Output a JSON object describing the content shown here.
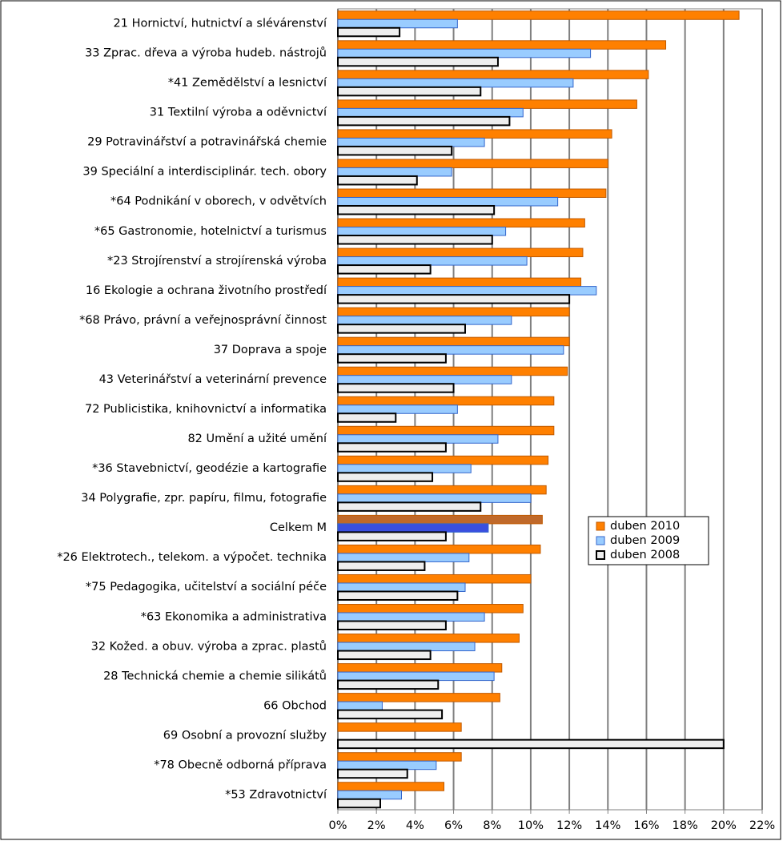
{
  "chart_data": {
    "type": "bar",
    "orientation": "horizontal",
    "categories": [
      "21 Hornictví, hutnictví a slévárenství",
      "33 Zprac. dřeva a výroba hudeb. nástrojů",
      "*41 Zemědělství a lesnictví",
      "31 Textilní výroba a oděvnictví",
      "29 Potravinářství a potravinářská chemie",
      "39 Speciální a interdisciplinár. tech. obory",
      "*64 Podnikání v oborech, v odvětvích",
      "*65 Gastronomie, hotelnictví a turismus",
      "*23 Strojírenství a strojírenská výroba",
      "16 Ekologie a ochrana životního prostředí",
      "*68 Právo, právní a veřejnosprávní činnost",
      "37 Doprava a spoje",
      "43 Veterinářství a veterinární prevence",
      "72 Publicistika, knihovnictví a informatika",
      "82 Umění a užité umění",
      "*36 Stavebnictví, geodézie a kartografie",
      "34 Polygrafie, zpr. papíru, filmu, fotografie",
      "Celkem M",
      "*26 Elektrotech., telekom. a výpočet. technika",
      "*75 Pedagogika, učitelství a sociální péče",
      "*63 Ekonomika a administrativa",
      "32 Kožed. a obuv. výroba a zprac. plastů",
      "28 Technická chemie a chemie silikátů",
      "66 Obchod",
      "69 Osobní a provozní služby",
      "*78 Obecně odborná příprava",
      "*53 Zdravotnictví"
    ],
    "series": [
      {
        "name": "duben 2010",
        "color": "#ff8000",
        "stroke": "#c05a00",
        "highlight_color": "#c0692a",
        "values": [
          20.8,
          17.0,
          16.1,
          15.5,
          14.2,
          14.0,
          13.9,
          12.8,
          12.7,
          12.6,
          12.0,
          12.0,
          11.9,
          11.2,
          11.2,
          10.9,
          10.8,
          10.6,
          10.5,
          10.0,
          9.6,
          9.4,
          8.5,
          8.4,
          6.4,
          6.4,
          5.5
        ]
      },
      {
        "name": "duben 2009",
        "color": "#99ccff",
        "stroke": "#3366cc",
        "highlight_color": "#3a4fe0",
        "values": [
          6.2,
          13.1,
          12.2,
          9.6,
          7.6,
          5.9,
          11.4,
          8.7,
          9.8,
          13.4,
          9.0,
          11.7,
          9.0,
          6.2,
          8.3,
          6.9,
          10.0,
          7.8,
          6.8,
          6.6,
          7.6,
          7.1,
          8.1,
          2.3,
          null,
          5.1,
          3.3
        ]
      },
      {
        "name": "duben 2008",
        "color": "#eeeeee",
        "stroke": "#000000",
        "highlight_color": "#eeeeee",
        "values": [
          3.2,
          8.3,
          7.4,
          8.9,
          5.9,
          4.1,
          8.1,
          8.0,
          4.8,
          12.0,
          6.6,
          5.6,
          6.0,
          3.0,
          5.6,
          4.9,
          7.4,
          5.6,
          4.5,
          6.2,
          5.6,
          4.8,
          5.2,
          5.4,
          20.0,
          3.6,
          2.2
        ]
      }
    ],
    "highlight_index": 17,
    "xlim": [
      0,
      22
    ],
    "xticks": [
      {
        "value": 0,
        "label": "0%"
      },
      {
        "value": 2,
        "label": "2%"
      },
      {
        "value": 4,
        "label": "4%"
      },
      {
        "value": 6,
        "label": "6%"
      },
      {
        "value": 8,
        "label": "8%"
      },
      {
        "value": 10,
        "label": "10%"
      },
      {
        "value": 12,
        "label": "12%"
      },
      {
        "value": 14,
        "label": "14%"
      },
      {
        "value": 16,
        "label": "16%"
      },
      {
        "value": 18,
        "label": "18%"
      },
      {
        "value": 20,
        "label": "20%"
      },
      {
        "value": 22,
        "label": "22%"
      }
    ],
    "grid": true,
    "legend": "right"
  }
}
